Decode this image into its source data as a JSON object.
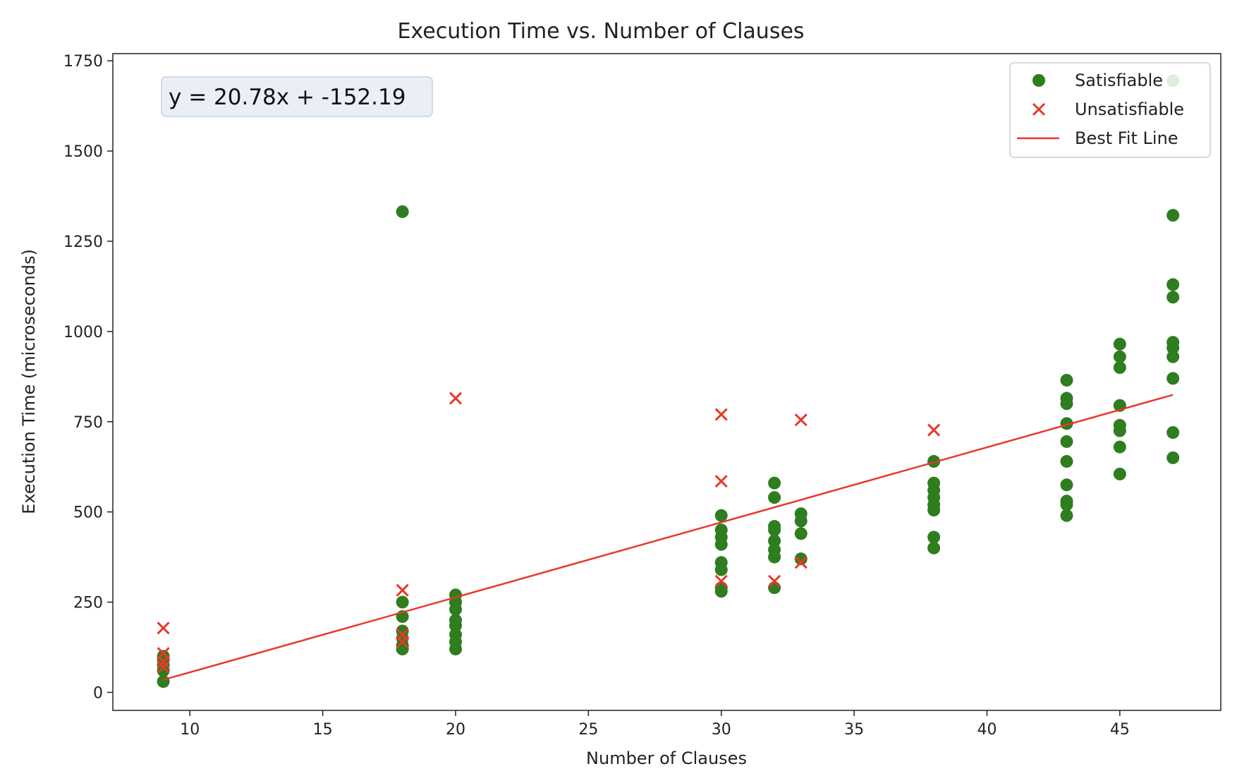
{
  "chart_data": {
    "type": "scatter",
    "title": "Execution Time vs. Number of Clauses",
    "xlabel": "Number of Clauses",
    "ylabel": "Execution Time (microseconds)",
    "xlim": [
      7.1,
      48.8
    ],
    "ylim": [
      -50,
      1770
    ],
    "xticks": [
      10,
      15,
      20,
      25,
      30,
      35,
      40,
      45
    ],
    "yticks": [
      0,
      250,
      500,
      750,
      1000,
      1250,
      1500,
      1750
    ],
    "grid": false,
    "legend_position": "top-right",
    "annotation": "y = 20.78x + -152.19",
    "fit_line": {
      "name": "Best Fit Line",
      "slope": 20.78,
      "intercept": -152.19,
      "x_range": [
        9,
        47
      ],
      "color": "#e8382b"
    },
    "series": [
      {
        "name": "Satisfiable",
        "marker": "circle",
        "color": "#2e7d1f",
        "points": [
          [
            9,
            30
          ],
          [
            9,
            60
          ],
          [
            9,
            75
          ],
          [
            9,
            90
          ],
          [
            9,
            100
          ],
          [
            18,
            1332
          ],
          [
            18,
            250
          ],
          [
            18,
            210
          ],
          [
            18,
            170
          ],
          [
            18,
            150
          ],
          [
            18,
            130
          ],
          [
            18,
            120
          ],
          [
            20,
            270
          ],
          [
            20,
            250
          ],
          [
            20,
            230
          ],
          [
            20,
            200
          ],
          [
            20,
            185
          ],
          [
            20,
            160
          ],
          [
            20,
            140
          ],
          [
            20,
            120
          ],
          [
            30,
            490
          ],
          [
            30,
            450
          ],
          [
            30,
            430
          ],
          [
            30,
            410
          ],
          [
            30,
            360
          ],
          [
            30,
            340
          ],
          [
            30,
            290
          ],
          [
            30,
            280
          ],
          [
            32,
            580
          ],
          [
            32,
            540
          ],
          [
            32,
            460
          ],
          [
            32,
            450
          ],
          [
            32,
            420
          ],
          [
            32,
            395
          ],
          [
            32,
            375
          ],
          [
            32,
            290
          ],
          [
            33,
            495
          ],
          [
            33,
            475
          ],
          [
            33,
            440
          ],
          [
            33,
            370
          ],
          [
            38,
            640
          ],
          [
            38,
            580
          ],
          [
            38,
            560
          ],
          [
            38,
            540
          ],
          [
            38,
            520
          ],
          [
            38,
            505
          ],
          [
            38,
            430
          ],
          [
            38,
            400
          ],
          [
            43,
            865
          ],
          [
            43,
            815
          ],
          [
            43,
            800
          ],
          [
            43,
            745
          ],
          [
            43,
            695
          ],
          [
            43,
            640
          ],
          [
            43,
            575
          ],
          [
            43,
            530
          ],
          [
            43,
            520
          ],
          [
            43,
            490
          ],
          [
            45,
            965
          ],
          [
            45,
            930
          ],
          [
            45,
            900
          ],
          [
            45,
            795
          ],
          [
            45,
            740
          ],
          [
            45,
            725
          ],
          [
            45,
            680
          ],
          [
            45,
            605
          ],
          [
            47,
            1695
          ],
          [
            47,
            1322
          ],
          [
            47,
            1130
          ],
          [
            47,
            1095
          ],
          [
            47,
            970
          ],
          [
            47,
            955
          ],
          [
            47,
            930
          ],
          [
            47,
            870
          ],
          [
            47,
            720
          ],
          [
            47,
            650
          ]
        ]
      },
      {
        "name": "Unsatisfiable",
        "marker": "x",
        "color": "#e8382b",
        "points": [
          [
            9,
            178
          ],
          [
            9,
            108
          ],
          [
            9,
            85
          ],
          [
            9,
            70
          ],
          [
            18,
            283
          ],
          [
            18,
            160
          ],
          [
            18,
            140
          ],
          [
            20,
            815
          ],
          [
            30,
            770
          ],
          [
            30,
            585
          ],
          [
            30,
            308
          ],
          [
            32,
            308
          ],
          [
            33,
            755
          ],
          [
            33,
            360
          ],
          [
            38,
            727
          ]
        ]
      }
    ]
  }
}
